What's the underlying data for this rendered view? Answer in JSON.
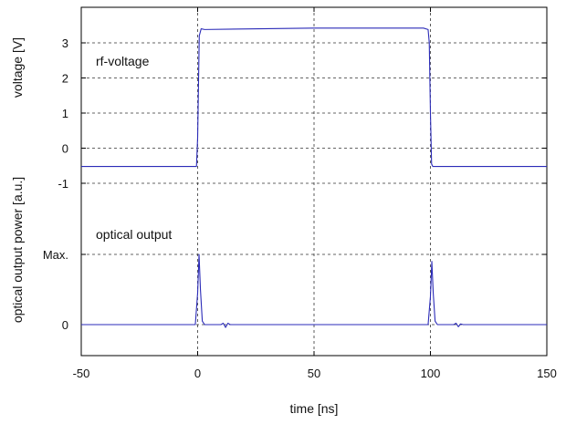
{
  "chart_data": {
    "type": "line",
    "title": "",
    "xlabel": "time [ns]",
    "xlim": [
      -50,
      150
    ],
    "xticks": [
      -50,
      0,
      50,
      100,
      150
    ],
    "grid": true,
    "line_color": "#2b2bb8",
    "panels": [
      {
        "name": "voltage",
        "ylabel": "voltage [V]",
        "ylim": [
          -1,
          3.5
        ],
        "yticks": [
          3,
          2,
          1,
          0,
          -1
        ],
        "annotation": "rf-voltage",
        "series": [
          {
            "x": [
              -50,
              -0.5,
              0,
              0.7,
              1.5,
              3,
              50,
              97,
              99,
              99.5,
              100,
              100.5,
              101,
              150
            ],
            "y": [
              -0.52,
              -0.52,
              0.3,
              3.2,
              3.4,
              3.38,
              3.42,
              3.42,
              3.38,
              3.0,
              1.0,
              -0.45,
              -0.52,
              -0.52
            ]
          }
        ]
      },
      {
        "name": "optical",
        "ylabel": "optical output power [a.u.]",
        "ylim": [
          -0.1,
          1.1
        ],
        "yticks": [
          0,
          1
        ],
        "ytick_labels": [
          "0",
          "Max."
        ],
        "annotation": "optical output",
        "series": [
          {
            "x": [
              -50,
              -1,
              0,
              0.6,
              1.2,
              2,
              3,
              10,
              11,
              12,
              13,
              14,
              20,
              50,
              99,
              100,
              100.6,
              101.2,
              102,
              103,
              110,
              111,
              112,
              113,
              114,
              120,
              150
            ],
            "y": [
              0,
              0,
              0.45,
              1.0,
              0.5,
              0.05,
              0,
              0,
              0.02,
              -0.04,
              0.02,
              0,
              0,
              0,
              0,
              0.4,
              0.9,
              0.45,
              0.05,
              0,
              0,
              0.02,
              -0.03,
              0.01,
              0,
              0,
              0
            ]
          }
        ]
      }
    ]
  }
}
